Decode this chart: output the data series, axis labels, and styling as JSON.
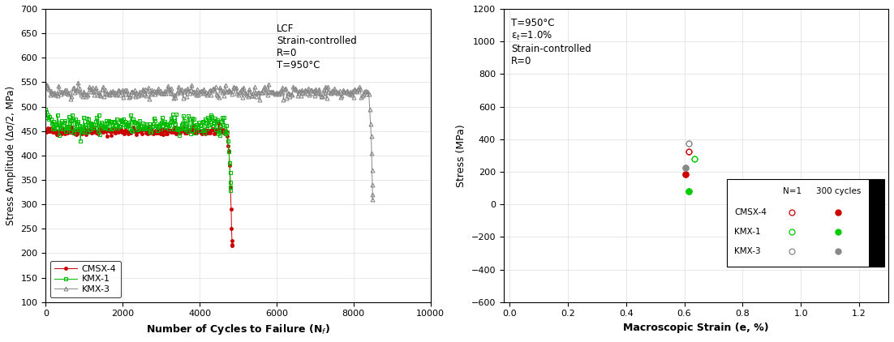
{
  "plot1": {
    "xlabel": "Number of Cycles to Failure (N$_f$)",
    "ylabel": "Stress Amplitude (Δσ/2, MPa)",
    "xlim": [
      0,
      10000
    ],
    "ylim": [
      100,
      700
    ],
    "yticks": [
      100,
      150,
      200,
      250,
      300,
      350,
      400,
      450,
      500,
      550,
      600,
      650,
      700
    ],
    "xticks": [
      0,
      2000,
      4000,
      6000,
      8000,
      10000
    ],
    "annotation": "LCF\nStrain-controlled\nR=0\nT=950°C",
    "colors": {
      "cmsx4": "#cc0000",
      "kmx1": "#00bb00",
      "kmx3": "#888888"
    }
  },
  "plot2": {
    "xlabel": "Macroscopic Strain (e, %)",
    "ylabel": "Stress (MPa)",
    "xlim": [
      -0.02,
      1.3
    ],
    "ylim": [
      -600,
      1200
    ],
    "yticks": [
      -600,
      -400,
      -200,
      0,
      200,
      400,
      600,
      800,
      1000,
      1200
    ],
    "xticks": [
      0.0,
      0.2,
      0.4,
      0.6,
      0.8,
      1.0,
      1.2
    ],
    "annotation": "T=950°C\nε$_t$=1.0%\nStrain-controlled\nR=0",
    "colors": {
      "cmsx4": "#cc0000",
      "kmx1": "#00cc00",
      "kmx3": "#888888"
    }
  }
}
